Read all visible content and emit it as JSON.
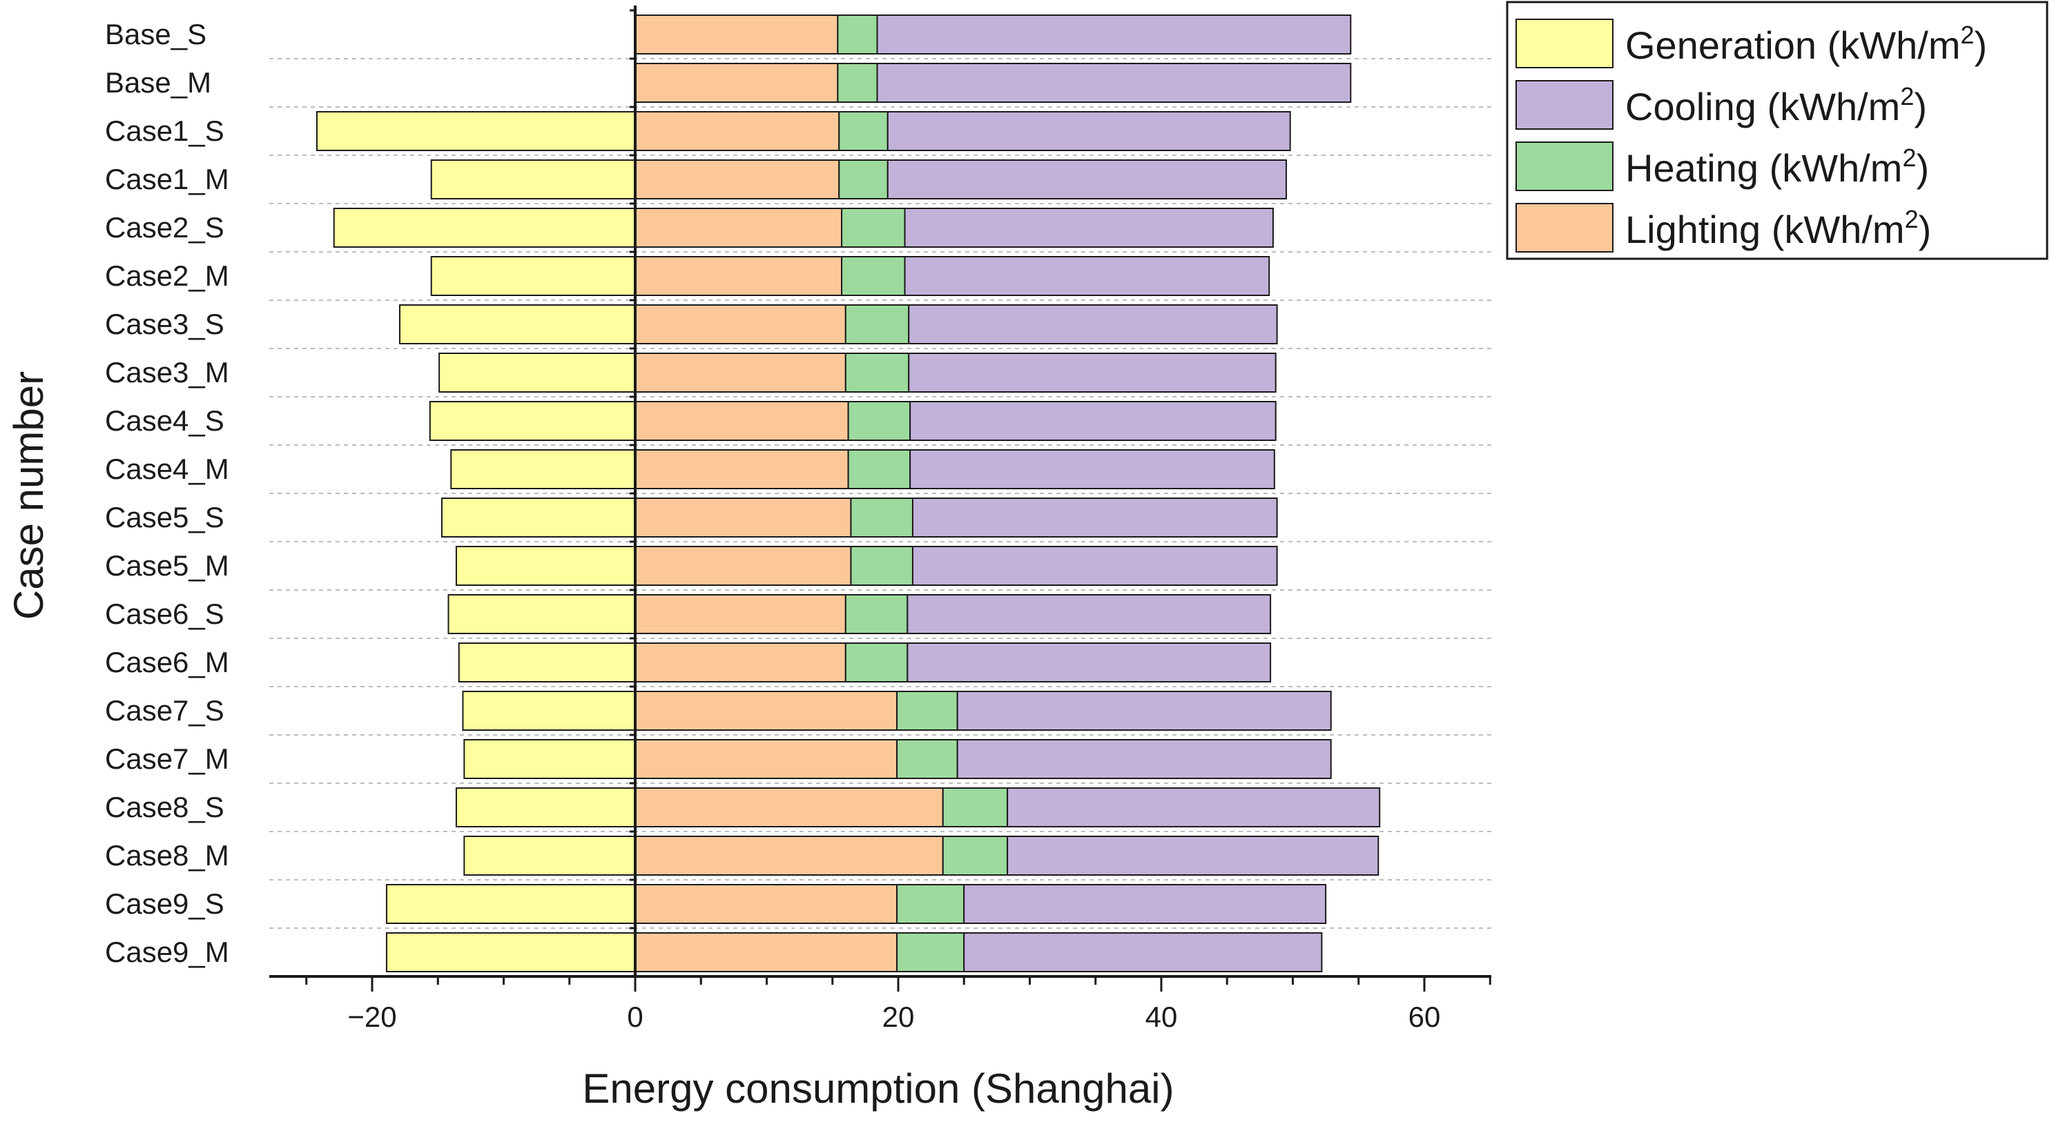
{
  "chart_data": {
    "type": "bar",
    "orientation": "horizontal",
    "stacked": true,
    "xlabel": "Energy consumption (Shanghai)",
    "ylabel": "Case number",
    "xlim": [
      -28,
      65
    ],
    "xticks": [
      -20,
      0,
      20,
      40,
      60
    ],
    "xtick_labels": [
      "−20",
      "0",
      "20",
      "40",
      "60"
    ],
    "grid": "horizontal dashed between rows",
    "legend_position": "top-right",
    "legend": [
      {
        "key": "generation",
        "label": "Generation (kWh/m",
        "sup": "2",
        "tail": ")",
        "color": "#FFFFA0"
      },
      {
        "key": "cooling",
        "label": "Cooling (kWh/m",
        "sup": "2",
        "tail": ")",
        "color": "#C2B2DA"
      },
      {
        "key": "heating",
        "label": "Heating (kWh/m",
        "sup": "2",
        "tail": ")",
        "color": "#9DDA9D"
      },
      {
        "key": "lighting",
        "label": "Lighting (kWh/m",
        "sup": "2",
        "tail": ")",
        "color": "#FCC89A"
      }
    ],
    "categories": [
      "Base_S",
      "Base_M",
      "Case1_S",
      "Case1_M",
      "Case2_S",
      "Case2_M",
      "Case3_S",
      "Case3_M",
      "Case4_S",
      "Case4_M",
      "Case5_S",
      "Case5_M",
      "Case6_S",
      "Case6_M",
      "Case7_S",
      "Case7_M",
      "Case8_S",
      "Case8_M",
      "Case9_S",
      "Case9_M"
    ],
    "series": [
      {
        "name": "Generation",
        "key": "generation",
        "color": "#FFFFA0",
        "values": [
          0,
          0,
          -24.2,
          -15.5,
          -22.9,
          -15.5,
          -17.9,
          -14.9,
          -15.6,
          -14.0,
          -14.7,
          -13.6,
          -14.2,
          -13.4,
          -13.1,
          -13.0,
          -13.6,
          -13.0,
          -18.9,
          -18.9
        ]
      },
      {
        "name": "Lighting",
        "key": "lighting",
        "color": "#FCC89A",
        "values": [
          15.4,
          15.4,
          15.5,
          15.5,
          15.7,
          15.7,
          16.0,
          16.0,
          16.2,
          16.2,
          16.4,
          16.4,
          16.0,
          16.0,
          19.9,
          19.9,
          23.4,
          23.4,
          19.9,
          19.9
        ]
      },
      {
        "name": "Heating",
        "key": "heating",
        "color": "#9DDA9D",
        "values": [
          3.0,
          3.0,
          3.7,
          3.7,
          4.8,
          4.8,
          4.8,
          4.8,
          4.7,
          4.7,
          4.7,
          4.7,
          4.7,
          4.7,
          4.6,
          4.6,
          4.9,
          4.9,
          5.1,
          5.1
        ]
      },
      {
        "name": "Cooling",
        "key": "cooling",
        "color": "#C2B2DA",
        "values": [
          36.0,
          36.0,
          30.6,
          30.3,
          28.0,
          27.7,
          28.0,
          27.9,
          27.8,
          27.7,
          27.7,
          27.7,
          27.6,
          27.6,
          28.4,
          28.4,
          28.3,
          28.2,
          27.5,
          27.2
        ]
      }
    ]
  }
}
